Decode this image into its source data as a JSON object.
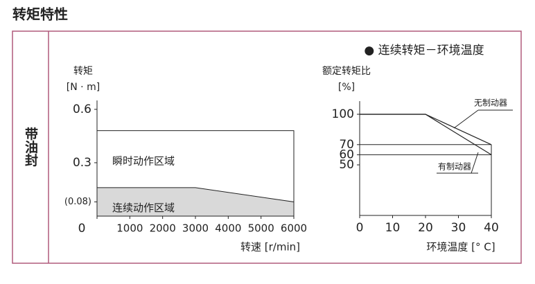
{
  "header": "转矩特性",
  "side_label": "带油封",
  "chart_data": [
    {
      "type": "area",
      "ylabel": [
        "转矩",
        "[N · m]"
      ],
      "xlabel": "转速 [r/min]",
      "xlim": [
        0,
        6000
      ],
      "ylim": [
        0,
        0.65
      ],
      "xticks": [
        0,
        1000,
        2000,
        3000,
        4000,
        5000,
        6000
      ],
      "yticks": [
        {
          "value": 0.08,
          "label": "(0.08)"
        },
        0.3,
        0.6
      ],
      "series": [
        {
          "name": "瞬时动作区域",
          "color": "#ffffff",
          "x": [
            0,
            6000
          ],
          "values": [
            0.48,
            0.48
          ]
        },
        {
          "name": "连续动作区域",
          "color": "#d9d9d9",
          "x": [
            0,
            3000,
            6000
          ],
          "values": [
            0.16,
            0.16,
            0.08
          ]
        }
      ]
    },
    {
      "type": "line",
      "title": "● 连续转矩－环境温度",
      "ylabel": [
        "额定转矩比",
        "[%]"
      ],
      "xlabel": "环境温度 [° C]",
      "xlim": [
        0,
        40
      ],
      "ylim": [
        0,
        113
      ],
      "xticks": [
        0,
        10,
        20,
        30,
        40
      ],
      "yticks": [
        50,
        60,
        70,
        100
      ],
      "series": [
        {
          "name": "无制动器",
          "color": "#222222",
          "x": [
            0,
            20,
            40
          ],
          "values": [
            100,
            100,
            70
          ]
        },
        {
          "name": "有制动器",
          "color": "#222222",
          "x": [
            0,
            20,
            40
          ],
          "values": [
            100,
            100,
            60
          ]
        }
      ]
    }
  ]
}
